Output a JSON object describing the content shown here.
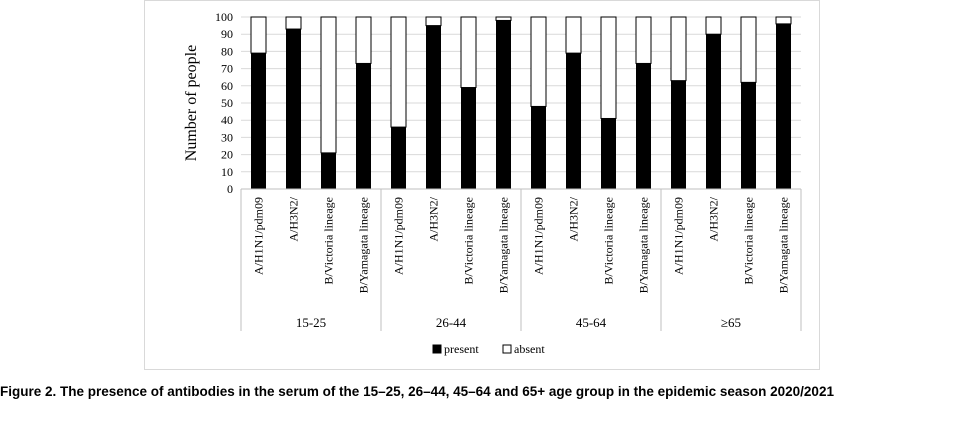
{
  "caption": "Figure 2. The presence of antibodies in the serum of the 15–25, 26–44, 45–64 and 65+ age group in the epidemic season 2020/2021",
  "chart_data": {
    "type": "bar",
    "stacked": true,
    "ylabel": "Number of people",
    "xlabel": "",
    "ylim": [
      0,
      100
    ],
    "yticks": [
      0,
      10,
      20,
      30,
      40,
      50,
      60,
      70,
      80,
      90,
      100
    ],
    "grid": "horizontal",
    "legend_position": "bottom",
    "groups": [
      {
        "label": "15-25",
        "categories": [
          "A/H1N1/pdm09",
          "A/H3N2/",
          "B/Victoria lineage",
          "B/Yamagata lineage"
        ]
      },
      {
        "label": "26-44",
        "categories": [
          "A/H1N1/pdm09",
          "A/H3N2/",
          "B/Victoria lineage",
          "B/Yamagata lineage"
        ]
      },
      {
        "label": "45-64",
        "categories": [
          "A/H1N1/pdm09",
          "A/H3N2/",
          "B/Victoria lineage",
          "B/Yamagata lineage"
        ]
      },
      {
        "label": "≥65",
        "categories": [
          "A/H1N1/pdm09",
          "A/H3N2/",
          "B/Victoria lineage",
          "B/Yamagata lineage"
        ]
      }
    ],
    "series": [
      {
        "name": "present",
        "color": "#000000",
        "values": [
          79,
          93,
          21,
          73,
          36,
          95,
          59,
          98,
          48,
          79,
          41,
          73,
          63,
          90,
          62,
          96
        ]
      },
      {
        "name": "absent",
        "color": "#ffffff",
        "values": [
          21,
          7,
          79,
          27,
          64,
          5,
          41,
          2,
          52,
          21,
          59,
          27,
          37,
          10,
          38,
          4
        ]
      }
    ]
  }
}
